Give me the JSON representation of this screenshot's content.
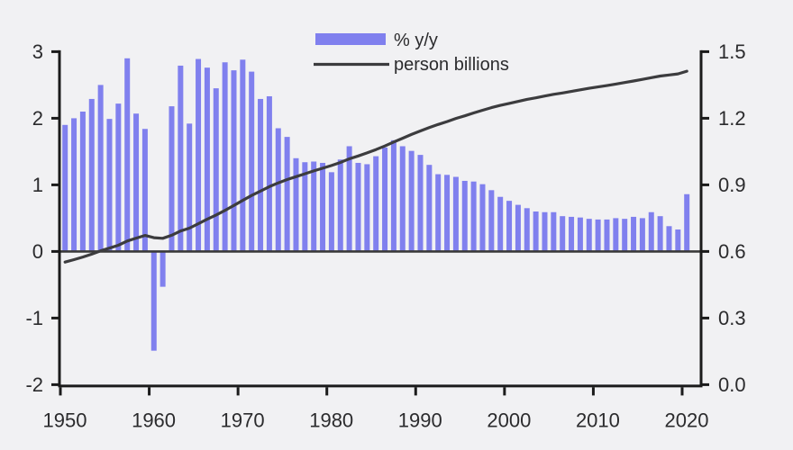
{
  "colors": {
    "background": "#f1f1f3",
    "bar": "#8080ee",
    "line": "#3c3c3e",
    "axis": "#1b1b1b",
    "zero_line": "#3a3a3a",
    "text": "#2b2b2d"
  },
  "legend": [
    {
      "label": "% y/y",
      "swatch": "bar"
    },
    {
      "label": "person billions",
      "swatch": "line"
    }
  ],
  "chart_data": {
    "type": "bar",
    "title": "",
    "xlabel": "",
    "ylabel_left": "% y/y",
    "ylabel_right": "person billions",
    "grid": false,
    "legend_position": "top-center",
    "x": [
      1950,
      1951,
      1952,
      1953,
      1954,
      1955,
      1956,
      1957,
      1958,
      1959,
      1960,
      1961,
      1962,
      1963,
      1964,
      1965,
      1966,
      1967,
      1968,
      1969,
      1970,
      1971,
      1972,
      1973,
      1974,
      1975,
      1976,
      1977,
      1978,
      1979,
      1980,
      1981,
      1982,
      1983,
      1984,
      1985,
      1986,
      1987,
      1988,
      1989,
      1990,
      1991,
      1992,
      1993,
      1994,
      1995,
      1996,
      1997,
      1998,
      1999,
      2000,
      2001,
      2002,
      2003,
      2004,
      2005,
      2006,
      2007,
      2008,
      2009,
      2010,
      2011,
      2012,
      2013,
      2014,
      2015,
      2016,
      2017,
      2018,
      2019,
      2020
    ],
    "series": [
      {
        "name": "% y/y",
        "type": "bar",
        "axis": "left",
        "values": [
          1.9,
          2.0,
          2.1,
          2.29,
          2.5,
          1.99,
          2.22,
          2.9,
          2.07,
          1.84,
          -1.49,
          -0.53,
          2.18,
          2.79,
          1.92,
          2.89,
          2.76,
          2.45,
          2.84,
          2.72,
          2.88,
          2.7,
          2.29,
          2.33,
          1.85,
          1.72,
          1.4,
          1.34,
          1.35,
          1.33,
          1.19,
          1.38,
          1.58,
          1.33,
          1.31,
          1.43,
          1.56,
          1.67,
          1.58,
          1.51,
          1.45,
          1.3,
          1.16,
          1.15,
          1.12,
          1.06,
          1.05,
          1.01,
          0.92,
          0.82,
          0.76,
          0.7,
          0.65,
          0.6,
          0.59,
          0.59,
          0.53,
          0.52,
          0.51,
          0.49,
          0.48,
          0.48,
          0.5,
          0.49,
          0.52,
          0.5,
          0.59,
          0.53,
          0.38,
          0.33,
          0.86
        ]
      },
      {
        "name": "person billions",
        "type": "line",
        "axis": "right",
        "values": [
          0.552,
          0.563,
          0.575,
          0.588,
          0.603,
          0.615,
          0.628,
          0.647,
          0.66,
          0.672,
          0.662,
          0.659,
          0.673,
          0.692,
          0.705,
          0.725,
          0.745,
          0.764,
          0.785,
          0.807,
          0.83,
          0.852,
          0.872,
          0.892,
          0.909,
          0.924,
          0.937,
          0.95,
          0.963,
          0.975,
          0.987,
          1.001,
          1.017,
          1.03,
          1.044,
          1.059,
          1.075,
          1.093,
          1.11,
          1.127,
          1.143,
          1.158,
          1.172,
          1.185,
          1.199,
          1.211,
          1.224,
          1.236,
          1.248,
          1.258,
          1.267,
          1.276,
          1.285,
          1.292,
          1.3,
          1.308,
          1.314,
          1.321,
          1.328,
          1.335,
          1.341,
          1.347,
          1.354,
          1.361,
          1.368,
          1.375,
          1.383,
          1.39,
          1.395,
          1.4,
          1.412
        ]
      }
    ],
    "left_axis": {
      "min": -2,
      "max": 3,
      "tick_values": [
        3,
        2,
        1,
        0,
        -1,
        -2
      ],
      "tick_labels": [
        "3",
        "2",
        "1",
        "0",
        "-1",
        "-2"
      ]
    },
    "right_axis": {
      "min": 0.0,
      "max": 1.5,
      "tick_values": [
        1.5,
        1.2,
        0.9,
        0.6,
        0.3,
        0.0
      ],
      "tick_labels": [
        "1.5",
        "1.2",
        "0.9",
        "0.6",
        "0.3",
        "0.0"
      ]
    },
    "x_axis": {
      "tick_values": [
        1950,
        1960,
        1970,
        1980,
        1990,
        2000,
        2010,
        2020
      ],
      "tick_labels": [
        "1950",
        "1960",
        "1970",
        "1980",
        "1990",
        "2000",
        "2010",
        "2020"
      ]
    }
  }
}
